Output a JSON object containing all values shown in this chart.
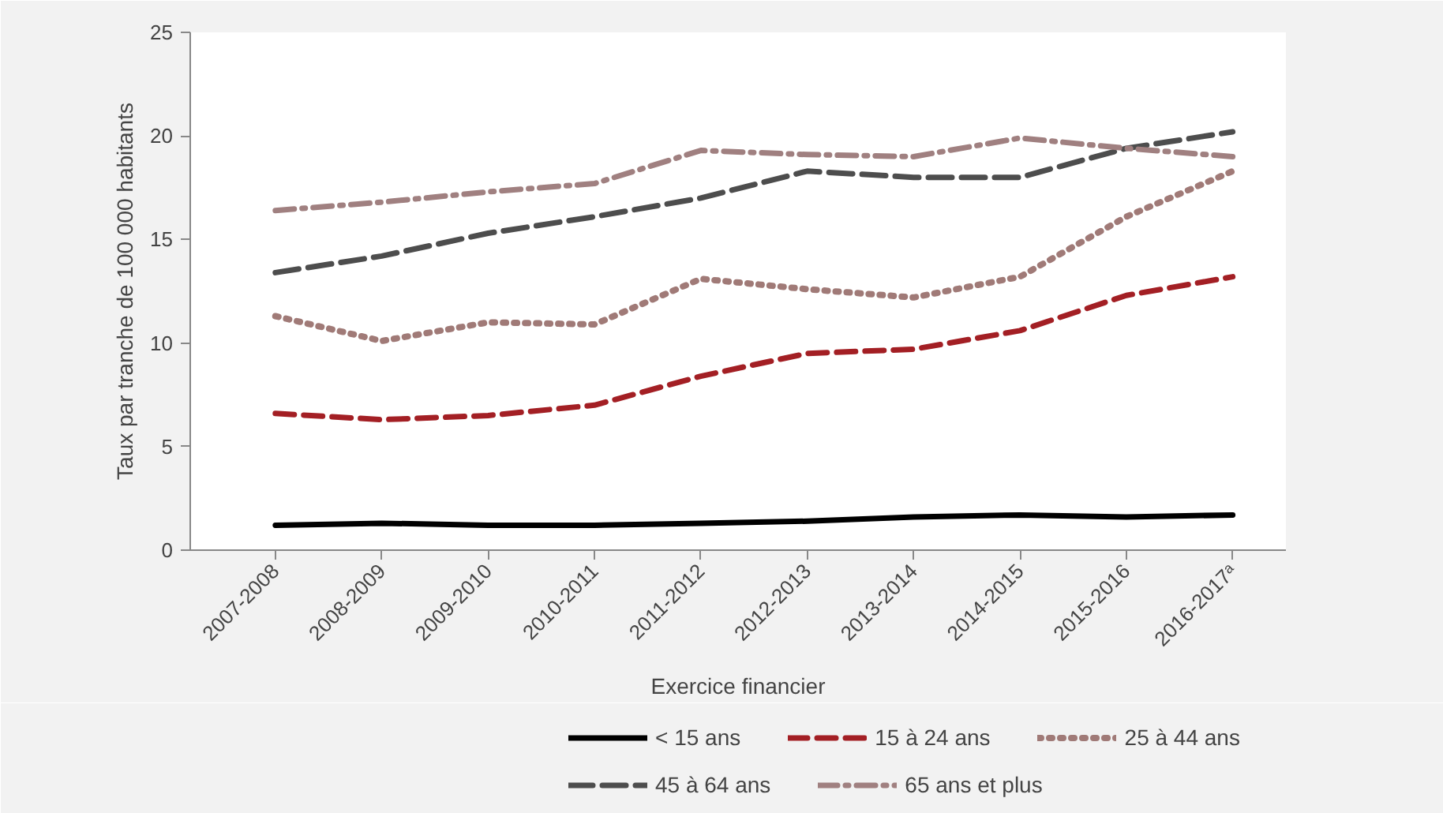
{
  "chart_data": {
    "type": "line",
    "xlabel": "Exercice financier",
    "ylabel": "Taux par tranche de 100 000 habitants",
    "categories": [
      "2007-2008",
      "2008-2009",
      "2009-2010",
      "2010-2011",
      "2011-2012",
      "2012-2013",
      "2013-2014",
      "2014-2015",
      "2015-2016",
      "2016-2017ᵃ"
    ],
    "ylim": [
      0,
      25
    ],
    "yticks": [
      0,
      5,
      10,
      15,
      20,
      25
    ],
    "grid": false,
    "legend": "bottom",
    "marker": "none",
    "series": [
      {
        "name": "< 15 ans",
        "color": "#000000",
        "line_style": "solid",
        "values": [
          1.2,
          1.3,
          1.2,
          1.2,
          1.3,
          1.4,
          1.6,
          1.7,
          1.6,
          1.7
        ]
      },
      {
        "name": "15 à 24 ans",
        "color": "#a31f24",
        "line_style": "dashed",
        "values": [
          6.6,
          6.3,
          6.5,
          7.0,
          8.4,
          9.5,
          9.7,
          10.6,
          12.3,
          13.2
        ]
      },
      {
        "name": "25 à 44 ans",
        "color": "#a07a77",
        "line_style": "dotted",
        "values": [
          11.3,
          10.1,
          11.0,
          10.9,
          13.1,
          12.6,
          12.2,
          13.2,
          16.1,
          18.3
        ]
      },
      {
        "name": "45 à 64 ans",
        "color": "#4d4d4d",
        "line_style": "dashed",
        "values": [
          13.4,
          14.2,
          15.3,
          16.1,
          17.0,
          18.3,
          18.0,
          18.0,
          19.4,
          20.2
        ]
      },
      {
        "name": "65 ans et plus",
        "color": "#a08080",
        "line_style": "dashdot",
        "values": [
          16.4,
          16.8,
          17.3,
          17.7,
          19.3,
          19.1,
          19.0,
          19.9,
          19.4,
          19.0
        ]
      }
    ]
  }
}
